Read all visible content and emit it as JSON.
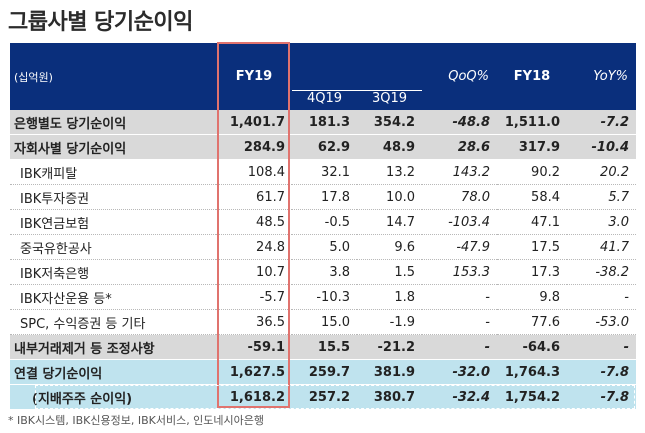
{
  "title": "그룹사별 당기순이익",
  "header": {
    "unit": "(십억원)",
    "fy19": "FY19",
    "q4": "4Q19",
    "q3": "3Q19",
    "qoq": "QoQ%",
    "fy18": "FY18",
    "yoy": "YoY%"
  },
  "rows": [
    {
      "name": "은행별도 당기순이익",
      "fy19": "1,401.7",
      "q4": "181.3",
      "q3": "354.2",
      "qoq": "-48.8",
      "fy18": "1,511.0",
      "yoy": "-7.2"
    },
    {
      "name": "자회사별 당기순이익",
      "fy19": "284.9",
      "q4": "62.9",
      "q3": "48.9",
      "qoq": "28.6",
      "fy18": "317.9",
      "yoy": "-10.4"
    },
    {
      "name": "IBK캐피탈",
      "fy19": "108.4",
      "q4": "32.1",
      "q3": "13.2",
      "qoq": "143.2",
      "fy18": "90.2",
      "yoy": "20.2"
    },
    {
      "name": "IBK투자증권",
      "fy19": "61.7",
      "q4": "17.8",
      "q3": "10.0",
      "qoq": "78.0",
      "fy18": "58.4",
      "yoy": "5.7"
    },
    {
      "name": "IBK연금보험",
      "fy19": "48.5",
      "q4": "-0.5",
      "q3": "14.7",
      "qoq": "-103.4",
      "fy18": "47.1",
      "yoy": "3.0"
    },
    {
      "name": "중국유한공사",
      "fy19": "24.8",
      "q4": "5.0",
      "q3": "9.6",
      "qoq": "-47.9",
      "fy18": "17.5",
      "yoy": "41.7"
    },
    {
      "name": "IBK저축은행",
      "fy19": "10.7",
      "q4": "3.8",
      "q3": "1.5",
      "qoq": "153.3",
      "fy18": "17.3",
      "yoy": "-38.2"
    },
    {
      "name": "IBK자산운용 등*",
      "fy19": "-5.7",
      "q4": "-10.3",
      "q3": "1.8",
      "qoq": "-",
      "fy18": "9.8",
      "yoy": "-"
    },
    {
      "name": "SPC, 수익증권 등 기타",
      "fy19": "36.5",
      "q4": "15.0",
      "q3": "-1.9",
      "qoq": "-",
      "fy18": "77.6",
      "yoy": "-53.0"
    },
    {
      "name": "내부거래제거 등 조정사항",
      "fy19": "-59.1",
      "q4": "15.5",
      "q3": "-21.2",
      "qoq": "-",
      "fy18": "-64.6",
      "yoy": "-"
    },
    {
      "name": "연결 당기순이익",
      "fy19": "1,627.5",
      "q4": "259.7",
      "q3": "381.9",
      "qoq": "-32.0",
      "fy18": "1,764.3",
      "yoy": "-7.8"
    },
    {
      "name": "(지배주주 순이익)",
      "fy19": "1,618.2",
      "q4": "257.2",
      "q3": "380.7",
      "qoq": "-32.4",
      "fy18": "1,754.2",
      "yoy": "-7.8"
    }
  ],
  "footnote": "* IBK시스템, IBK신용정보, IBK서비스, 인도네시아은행",
  "colors": {
    "header_bg": "#0a2f7c",
    "grey_row": "#d9d9d9",
    "blue_row": "#bfe3ee",
    "highlight": "#e0736e"
  }
}
